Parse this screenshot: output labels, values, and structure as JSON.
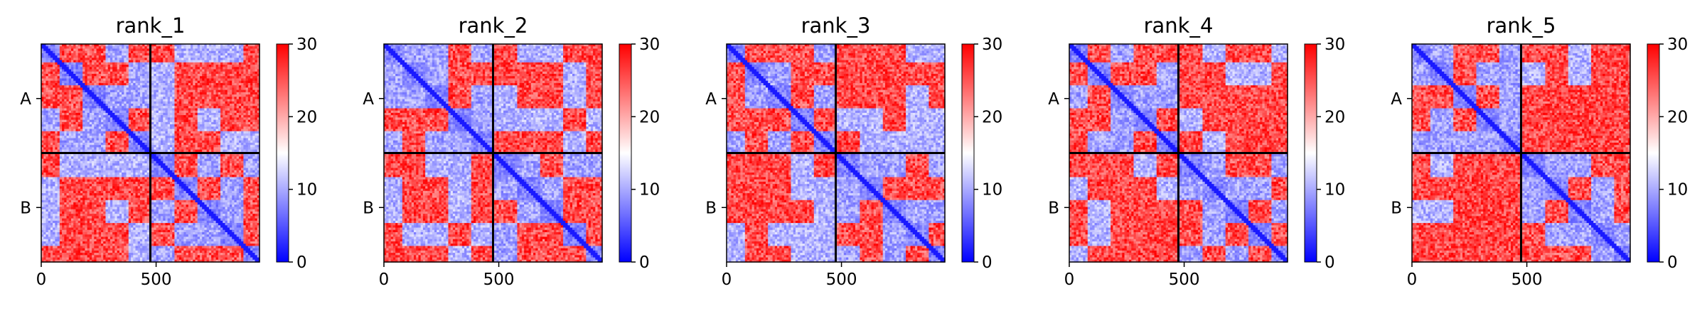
{
  "chart_data": {
    "type": "heatmap",
    "colormap": {
      "name": "bwr",
      "low": "#0000ff",
      "mid": "#ffffff",
      "high": "#ff0000"
    },
    "color_range": [
      0,
      30
    ],
    "colorbar_ticks": [
      0,
      10,
      20,
      30
    ],
    "x_range": [
      0,
      950
    ],
    "x_ticks": [
      0,
      500
    ],
    "chain_boundary": 475,
    "y_tick_labels": [
      "A",
      "B"
    ],
    "panels": [
      {
        "title": "rank_1"
      },
      {
        "title": "rank_2"
      },
      {
        "title": "rank_3"
      },
      {
        "title": "rank_4"
      },
      {
        "title": "rank_5"
      }
    ]
  }
}
